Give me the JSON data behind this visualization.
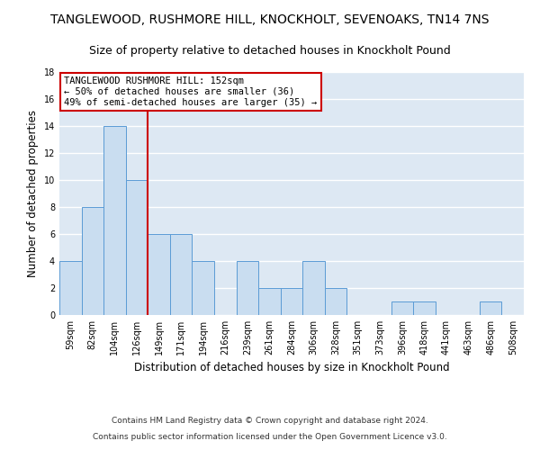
{
  "title": "TANGLEWOOD, RUSHMORE HILL, KNOCKHOLT, SEVENOAKS, TN14 7NS",
  "subtitle": "Size of property relative to detached houses in Knockholt Pound",
  "xlabel": "Distribution of detached houses by size in Knockholt Pound",
  "ylabel": "Number of detached properties",
  "categories": [
    "59sqm",
    "82sqm",
    "104sqm",
    "126sqm",
    "149sqm",
    "171sqm",
    "194sqm",
    "216sqm",
    "239sqm",
    "261sqm",
    "284sqm",
    "306sqm",
    "328sqm",
    "351sqm",
    "373sqm",
    "396sqm",
    "418sqm",
    "441sqm",
    "463sqm",
    "486sqm",
    "508sqm"
  ],
  "values": [
    4,
    8,
    14,
    10,
    6,
    6,
    4,
    0,
    4,
    2,
    2,
    4,
    2,
    0,
    0,
    1,
    1,
    0,
    0,
    1,
    0
  ],
  "bar_color": "#c9ddf0",
  "bar_edge_color": "#5b9bd5",
  "ylim": [
    0,
    18
  ],
  "yticks": [
    0,
    2,
    4,
    6,
    8,
    10,
    12,
    14,
    16,
    18
  ],
  "vline_pos": 3.5,
  "vline_color": "#cc0000",
  "annotation_text": "TANGLEWOOD RUSHMORE HILL: 152sqm\n← 50% of detached houses are smaller (36)\n49% of semi-detached houses are larger (35) →",
  "annotation_box_color": "#ffffff",
  "annotation_box_edge_color": "#cc0000",
  "footer1": "Contains HM Land Registry data © Crown copyright and database right 2024.",
  "footer2": "Contains public sector information licensed under the Open Government Licence v3.0.",
  "background_color": "#dde8f3",
  "grid_color": "#ffffff",
  "title_fontsize": 10,
  "subtitle_fontsize": 9,
  "xlabel_fontsize": 8.5,
  "ylabel_fontsize": 8.5,
  "tick_fontsize": 7,
  "annotation_fontsize": 7.5,
  "footer_fontsize": 6.5
}
